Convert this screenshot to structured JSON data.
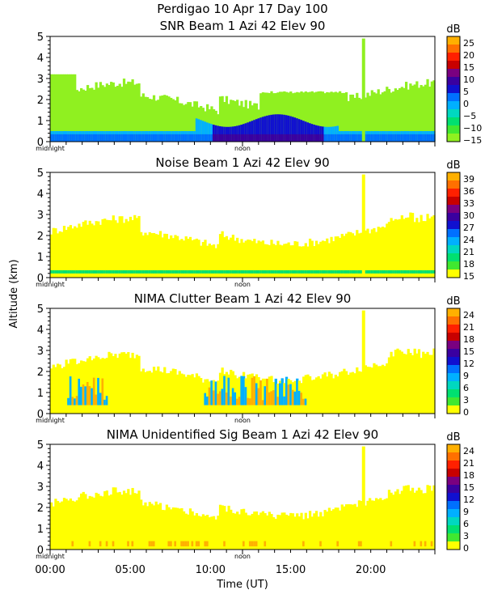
{
  "figure": {
    "site_title": "Perdigao   10 Apr 17 Day 100",
    "ylabel": "Altitude (km)",
    "xlabel": "Time (UT)",
    "midnight_label": "midnight",
    "noon_label": "noon",
    "cb_unit": "dB"
  },
  "chart_data": [
    {
      "type": "heatmap",
      "title": "SNR Beam 1 Azi   42 Elev 90",
      "y_ticks": [
        "0",
        "1",
        "2",
        "3",
        "4",
        "5"
      ],
      "ylim": [
        0,
        5
      ],
      "colorbar": {
        "labels": [
          "25",
          "20",
          "15",
          "10",
          "5",
          "0",
          "−5",
          "−10",
          "−15"
        ],
        "colors": [
          "#ffb000",
          "#ff7000",
          "#ff2000",
          "#c80000",
          "#7a0080",
          "#3a00a0",
          "#1010d0",
          "#0070ff",
          "#00b0ff",
          "#00d8c0",
          "#00e070",
          "#40e830",
          "#90f020"
        ]
      },
      "features": "low-level strong returns 0-1 km through day, boundary layer growth to ~2.3 km near 16-18 UT"
    },
    {
      "type": "heatmap",
      "title": "Noise Beam 1 Azi   42 Elev 90",
      "y_ticks": [
        "0",
        "1",
        "2",
        "3",
        "4",
        "5"
      ],
      "ylim": [
        0,
        5
      ],
      "colorbar": {
        "labels": [
          "39",
          "36",
          "33",
          "30",
          "27",
          "24",
          "21",
          "18",
          "15"
        ],
        "colors": [
          "#ffb000",
          "#ff7000",
          "#ff2000",
          "#c80000",
          "#7a0080",
          "#3a00a0",
          "#1010d0",
          "#0070ff",
          "#00b0ff",
          "#00d8c0",
          "#00e070",
          "#40e830",
          "#ffff00"
        ]
      },
      "features": "uniform yellow noise floor up to ~2.5 km, thin green band near 0.3 km"
    },
    {
      "type": "heatmap",
      "title": "NIMA Clutter Beam 1 Azi   42 Elev 90",
      "y_ticks": [
        "0",
        "1",
        "2",
        "3",
        "4",
        "5"
      ],
      "ylim": [
        0,
        5
      ],
      "colorbar": {
        "labels": [
          "24",
          "21",
          "18",
          "15",
          "12",
          "9",
          "6",
          "3",
          "0"
        ],
        "colors": [
          "#ffb000",
          "#ff7000",
          "#ff2000",
          "#c80000",
          "#7a0080",
          "#3a00a0",
          "#1010d0",
          "#0070ff",
          "#00b0ff",
          "#00d8c0",
          "#00e070",
          "#40e830",
          "#ffff00"
        ]
      },
      "features": "mostly 0 dB, clutter streaks 1-2 km in early morning and around 10-16 UT"
    },
    {
      "type": "heatmap",
      "title": "NIMA Unidentified Sig Beam 1 Azi   42 Elev 90",
      "y_ticks": [
        "0",
        "1",
        "2",
        "3",
        "4",
        "5"
      ],
      "ylim": [
        0,
        5
      ],
      "colorbar": {
        "labels": [
          "24",
          "21",
          "18",
          "15",
          "12",
          "9",
          "6",
          "3",
          "0"
        ],
        "colors": [
          "#ffb000",
          "#ff7000",
          "#ff2000",
          "#c80000",
          "#7a0080",
          "#3a00a0",
          "#1010d0",
          "#0070ff",
          "#00b0ff",
          "#00d8c0",
          "#00e070",
          "#40e830",
          "#ffff00"
        ]
      },
      "features": "mostly 0 dB up to ~2.5 km with small orange patches near surface"
    }
  ],
  "x_axis": {
    "range_hours": [
      0,
      24
    ],
    "tick_hours": [
      0,
      5,
      10,
      15,
      20
    ],
    "tick_labels": [
      "00:00",
      "05:00",
      "10:00",
      "15:00",
      "20:00"
    ]
  }
}
